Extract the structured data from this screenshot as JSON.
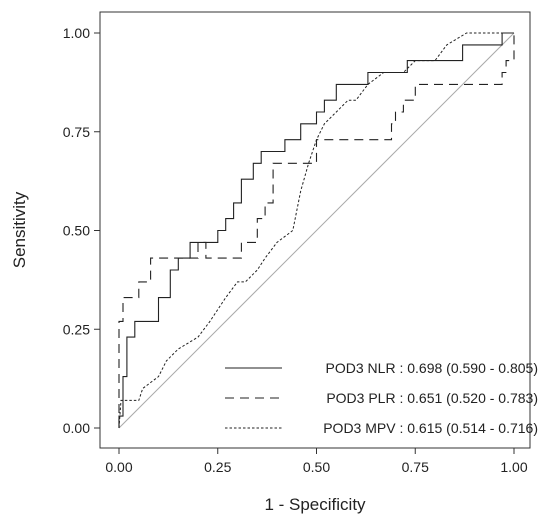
{
  "chart_data": {
    "type": "line",
    "title": "",
    "xlabel": "1 - Specificity",
    "ylabel": "Sensitivity",
    "xlim": [
      0,
      1
    ],
    "ylim": [
      0,
      1
    ],
    "x_ticks": [
      "0.00",
      "0.25",
      "0.50",
      "0.75",
      "1.00"
    ],
    "y_ticks": [
      "0.00",
      "0.25",
      "0.50",
      "0.75",
      "1.00"
    ],
    "grid": false,
    "legend_position": "bottom-right",
    "reference_line": {
      "from": [
        0,
        0
      ],
      "to": [
        1,
        1
      ],
      "color": "#aaaaaa"
    },
    "series": [
      {
        "name": "POD3 NLR : 0.698 (0.590 - 0.805)",
        "style": "solid",
        "color": "#222222",
        "points": [
          [
            0,
            0
          ],
          [
            0,
            0.03
          ],
          [
            0.01,
            0.03
          ],
          [
            0.01,
            0.13
          ],
          [
            0.02,
            0.13
          ],
          [
            0.02,
            0.23
          ],
          [
            0.04,
            0.23
          ],
          [
            0.04,
            0.27
          ],
          [
            0.1,
            0.27
          ],
          [
            0.1,
            0.33
          ],
          [
            0.13,
            0.33
          ],
          [
            0.13,
            0.4
          ],
          [
            0.15,
            0.4
          ],
          [
            0.15,
            0.43
          ],
          [
            0.18,
            0.43
          ],
          [
            0.18,
            0.47
          ],
          [
            0.25,
            0.47
          ],
          [
            0.25,
            0.5
          ],
          [
            0.27,
            0.5
          ],
          [
            0.27,
            0.53
          ],
          [
            0.29,
            0.53
          ],
          [
            0.29,
            0.57
          ],
          [
            0.31,
            0.57
          ],
          [
            0.31,
            0.63
          ],
          [
            0.34,
            0.63
          ],
          [
            0.34,
            0.67
          ],
          [
            0.36,
            0.67
          ],
          [
            0.36,
            0.7
          ],
          [
            0.42,
            0.7
          ],
          [
            0.42,
            0.73
          ],
          [
            0.46,
            0.73
          ],
          [
            0.46,
            0.77
          ],
          [
            0.5,
            0.77
          ],
          [
            0.5,
            0.8
          ],
          [
            0.52,
            0.8
          ],
          [
            0.52,
            0.83
          ],
          [
            0.55,
            0.83
          ],
          [
            0.55,
            0.87
          ],
          [
            0.63,
            0.87
          ],
          [
            0.63,
            0.9
          ],
          [
            0.73,
            0.9
          ],
          [
            0.73,
            0.93
          ],
          [
            0.87,
            0.93
          ],
          [
            0.87,
            0.97
          ],
          [
            0.97,
            0.97
          ],
          [
            0.97,
            1.0
          ],
          [
            1.0,
            1.0
          ]
        ]
      },
      {
        "name": "POD3 PLR : 0.651 (0.520 - 0.783)",
        "style": "dashed",
        "color": "#222222",
        "points": [
          [
            0,
            0
          ],
          [
            0,
            0.27
          ],
          [
            0.01,
            0.27
          ],
          [
            0.01,
            0.33
          ],
          [
            0.05,
            0.33
          ],
          [
            0.05,
            0.37
          ],
          [
            0.08,
            0.37
          ],
          [
            0.08,
            0.43
          ],
          [
            0.2,
            0.43
          ],
          [
            0.2,
            0.47
          ],
          [
            0.22,
            0.47
          ],
          [
            0.22,
            0.43
          ],
          [
            0.31,
            0.43
          ],
          [
            0.31,
            0.47
          ],
          [
            0.35,
            0.47
          ],
          [
            0.35,
            0.53
          ],
          [
            0.37,
            0.53
          ],
          [
            0.37,
            0.57
          ],
          [
            0.39,
            0.57
          ],
          [
            0.39,
            0.67
          ],
          [
            0.5,
            0.67
          ],
          [
            0.5,
            0.73
          ],
          [
            0.69,
            0.73
          ],
          [
            0.69,
            0.77
          ],
          [
            0.7,
            0.77
          ],
          [
            0.7,
            0.8
          ],
          [
            0.72,
            0.8
          ],
          [
            0.72,
            0.83
          ],
          [
            0.75,
            0.83
          ],
          [
            0.75,
            0.87
          ],
          [
            0.97,
            0.87
          ],
          [
            0.97,
            0.9
          ],
          [
            0.98,
            0.9
          ],
          [
            0.98,
            0.93
          ],
          [
            1.0,
            0.93
          ],
          [
            1.0,
            1.0
          ]
        ]
      },
      {
        "name": "POD3 MPV : 0.615 (0.514 - 0.716)",
        "style": "dotted",
        "color": "#222222",
        "points": [
          [
            0,
            0
          ],
          [
            0.005,
            0.07
          ],
          [
            0.05,
            0.07
          ],
          [
            0.06,
            0.1
          ],
          [
            0.1,
            0.13
          ],
          [
            0.12,
            0.17
          ],
          [
            0.15,
            0.2
          ],
          [
            0.2,
            0.23
          ],
          [
            0.23,
            0.27
          ],
          [
            0.25,
            0.3
          ],
          [
            0.27,
            0.33
          ],
          [
            0.3,
            0.37
          ],
          [
            0.32,
            0.37
          ],
          [
            0.35,
            0.4
          ],
          [
            0.37,
            0.43
          ],
          [
            0.4,
            0.47
          ],
          [
            0.44,
            0.5
          ],
          [
            0.46,
            0.6
          ],
          [
            0.48,
            0.67
          ],
          [
            0.5,
            0.73
          ],
          [
            0.52,
            0.77
          ],
          [
            0.55,
            0.8
          ],
          [
            0.58,
            0.83
          ],
          [
            0.6,
            0.83
          ],
          [
            0.63,
            0.87
          ],
          [
            0.67,
            0.9
          ],
          [
            0.72,
            0.9
          ],
          [
            0.75,
            0.93
          ],
          [
            0.8,
            0.93
          ],
          [
            0.83,
            0.97
          ],
          [
            0.88,
            1.0
          ],
          [
            1.0,
            1.0
          ]
        ]
      }
    ]
  }
}
